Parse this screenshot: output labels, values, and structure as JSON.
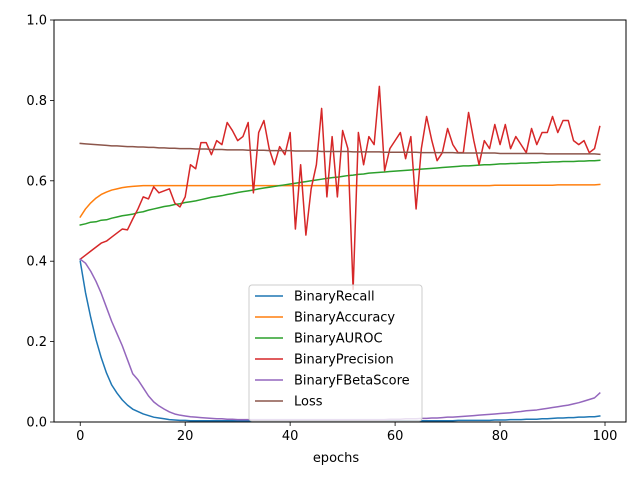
{
  "chart_data": {
    "type": "line",
    "title": "",
    "xlabel": "epochs",
    "ylabel": "",
    "xlim": [
      -5,
      104
    ],
    "ylim": [
      0.0,
      1.0
    ],
    "x_ticks": [
      0,
      20,
      40,
      60,
      80,
      100
    ],
    "y_ticks": [
      0.0,
      0.2,
      0.4,
      0.6,
      0.8,
      1.0
    ],
    "x_tick_labels": [
      "0",
      "20",
      "40",
      "60",
      "80",
      "100"
    ],
    "y_tick_labels": [
      "0.0",
      "0.2",
      "0.4",
      "0.6",
      "0.8",
      "1.0"
    ],
    "grid": false,
    "legend_position": "bottom-center",
    "x": [
      0,
      1,
      2,
      3,
      4,
      5,
      6,
      7,
      8,
      9,
      10,
      11,
      12,
      13,
      14,
      15,
      16,
      17,
      18,
      19,
      20,
      21,
      22,
      23,
      24,
      25,
      26,
      27,
      28,
      29,
      30,
      31,
      32,
      33,
      34,
      35,
      36,
      37,
      38,
      39,
      40,
      41,
      42,
      43,
      44,
      45,
      46,
      47,
      48,
      49,
      50,
      51,
      52,
      53,
      54,
      55,
      56,
      57,
      58,
      59,
      60,
      61,
      62,
      63,
      64,
      65,
      66,
      67,
      68,
      69,
      70,
      71,
      72,
      73,
      74,
      75,
      76,
      77,
      78,
      79,
      80,
      81,
      82,
      83,
      84,
      85,
      86,
      87,
      88,
      89,
      90,
      91,
      92,
      93,
      94,
      95,
      96,
      97,
      98,
      99
    ],
    "series": [
      {
        "name": "BinaryRecall",
        "color": "#1f77b4",
        "values": [
          0.4,
          0.322,
          0.26,
          0.205,
          0.16,
          0.122,
          0.092,
          0.072,
          0.055,
          0.042,
          0.032,
          0.026,
          0.02,
          0.016,
          0.012,
          0.01,
          0.008,
          0.006,
          0.005,
          0.004,
          0.004,
          0.003,
          0.003,
          0.003,
          0.003,
          0.003,
          0.003,
          0.003,
          0.003,
          0.003,
          0.003,
          0.003,
          0.003,
          0.003,
          0.003,
          0.003,
          0.003,
          0.003,
          0.003,
          0.003,
          0.003,
          0.003,
          0.003,
          0.003,
          0.003,
          0.003,
          0.003,
          0.003,
          0.003,
          0.003,
          0.003,
          0.003,
          0.003,
          0.003,
          0.003,
          0.003,
          0.003,
          0.003,
          0.003,
          0.003,
          0.003,
          0.003,
          0.003,
          0.003,
          0.003,
          0.003,
          0.003,
          0.003,
          0.003,
          0.003,
          0.003,
          0.003,
          0.004,
          0.004,
          0.004,
          0.004,
          0.004,
          0.004,
          0.004,
          0.005,
          0.005,
          0.005,
          0.006,
          0.006,
          0.006,
          0.007,
          0.007,
          0.007,
          0.008,
          0.008,
          0.009,
          0.01,
          0.01,
          0.011,
          0.011,
          0.012,
          0.012,
          0.013,
          0.013,
          0.015
        ]
      },
      {
        "name": "BinaryAccuracy",
        "color": "#ff7f0e",
        "values": [
          0.51,
          0.53,
          0.545,
          0.557,
          0.566,
          0.572,
          0.577,
          0.58,
          0.583,
          0.585,
          0.586,
          0.587,
          0.588,
          0.588,
          0.588,
          0.588,
          0.588,
          0.588,
          0.588,
          0.588,
          0.588,
          0.588,
          0.588,
          0.588,
          0.588,
          0.588,
          0.588,
          0.588,
          0.588,
          0.588,
          0.588,
          0.588,
          0.588,
          0.588,
          0.588,
          0.588,
          0.588,
          0.588,
          0.588,
          0.588,
          0.588,
          0.588,
          0.588,
          0.588,
          0.588,
          0.588,
          0.588,
          0.588,
          0.588,
          0.588,
          0.588,
          0.588,
          0.588,
          0.588,
          0.588,
          0.588,
          0.588,
          0.588,
          0.588,
          0.588,
          0.588,
          0.588,
          0.588,
          0.588,
          0.588,
          0.588,
          0.588,
          0.588,
          0.588,
          0.588,
          0.588,
          0.588,
          0.588,
          0.588,
          0.588,
          0.588,
          0.588,
          0.588,
          0.588,
          0.589,
          0.589,
          0.589,
          0.589,
          0.589,
          0.589,
          0.589,
          0.589,
          0.589,
          0.589,
          0.589,
          0.589,
          0.59,
          0.59,
          0.59,
          0.59,
          0.59,
          0.59,
          0.59,
          0.59,
          0.591
        ]
      },
      {
        "name": "BinaryAUROC",
        "color": "#2ca02c",
        "values": [
          0.49,
          0.493,
          0.497,
          0.498,
          0.502,
          0.503,
          0.507,
          0.51,
          0.513,
          0.515,
          0.517,
          0.521,
          0.523,
          0.527,
          0.53,
          0.533,
          0.536,
          0.538,
          0.541,
          0.543,
          0.546,
          0.548,
          0.55,
          0.553,
          0.556,
          0.559,
          0.561,
          0.563,
          0.566,
          0.568,
          0.571,
          0.573,
          0.575,
          0.577,
          0.58,
          0.582,
          0.584,
          0.586,
          0.588,
          0.59,
          0.592,
          0.594,
          0.596,
          0.598,
          0.6,
          0.602,
          0.604,
          0.606,
          0.608,
          0.609,
          0.611,
          0.613,
          0.614,
          0.616,
          0.617,
          0.619,
          0.62,
          0.621,
          0.622,
          0.623,
          0.624,
          0.625,
          0.626,
          0.627,
          0.628,
          0.629,
          0.63,
          0.631,
          0.632,
          0.633,
          0.634,
          0.635,
          0.636,
          0.637,
          0.637,
          0.638,
          0.639,
          0.64,
          0.64,
          0.641,
          0.642,
          0.642,
          0.643,
          0.643,
          0.644,
          0.644,
          0.645,
          0.645,
          0.646,
          0.646,
          0.647,
          0.647,
          0.648,
          0.648,
          0.648,
          0.649,
          0.649,
          0.65,
          0.65,
          0.651
        ]
      },
      {
        "name": "BinaryPrecision",
        "color": "#d62728",
        "values": [
          0.405,
          0.415,
          0.425,
          0.435,
          0.445,
          0.45,
          0.46,
          0.47,
          0.48,
          0.478,
          0.505,
          0.53,
          0.56,
          0.555,
          0.585,
          0.57,
          0.575,
          0.58,
          0.545,
          0.535,
          0.56,
          0.64,
          0.63,
          0.695,
          0.695,
          0.665,
          0.7,
          0.69,
          0.745,
          0.725,
          0.7,
          0.71,
          0.745,
          0.57,
          0.72,
          0.75,
          0.68,
          0.64,
          0.685,
          0.665,
          0.72,
          0.48,
          0.64,
          0.465,
          0.58,
          0.64,
          0.78,
          0.56,
          0.71,
          0.56,
          0.725,
          0.68,
          0.33,
          0.72,
          0.64,
          0.71,
          0.69,
          0.835,
          0.625,
          0.68,
          0.7,
          0.72,
          0.655,
          0.71,
          0.53,
          0.68,
          0.76,
          0.7,
          0.65,
          0.67,
          0.73,
          0.69,
          0.67,
          0.67,
          0.77,
          0.7,
          0.64,
          0.7,
          0.68,
          0.74,
          0.69,
          0.74,
          0.68,
          0.71,
          0.69,
          0.67,
          0.73,
          0.69,
          0.72,
          0.72,
          0.76,
          0.72,
          0.75,
          0.75,
          0.7,
          0.69,
          0.7,
          0.67,
          0.68,
          0.735
        ]
      },
      {
        "name": "BinaryFBetaScore",
        "color": "#9467bd",
        "values": [
          0.405,
          0.395,
          0.375,
          0.35,
          0.32,
          0.285,
          0.25,
          0.22,
          0.19,
          0.155,
          0.12,
          0.105,
          0.085,
          0.065,
          0.05,
          0.04,
          0.032,
          0.025,
          0.02,
          0.017,
          0.015,
          0.013,
          0.012,
          0.011,
          0.01,
          0.009,
          0.008,
          0.008,
          0.007,
          0.007,
          0.006,
          0.006,
          0.006,
          0.006,
          0.006,
          0.006,
          0.006,
          0.006,
          0.006,
          0.006,
          0.006,
          0.006,
          0.006,
          0.006,
          0.006,
          0.006,
          0.006,
          0.006,
          0.006,
          0.006,
          0.006,
          0.006,
          0.006,
          0.006,
          0.006,
          0.006,
          0.006,
          0.006,
          0.006,
          0.007,
          0.007,
          0.007,
          0.008,
          0.008,
          0.008,
          0.009,
          0.009,
          0.01,
          0.01,
          0.011,
          0.012,
          0.012,
          0.013,
          0.014,
          0.015,
          0.016,
          0.017,
          0.018,
          0.019,
          0.02,
          0.021,
          0.022,
          0.023,
          0.025,
          0.026,
          0.028,
          0.029,
          0.03,
          0.032,
          0.034,
          0.036,
          0.038,
          0.04,
          0.042,
          0.045,
          0.048,
          0.052,
          0.056,
          0.06,
          0.072
        ]
      },
      {
        "name": "Loss",
        "color": "#8c564b",
        "values": [
          0.693,
          0.692,
          0.691,
          0.69,
          0.689,
          0.688,
          0.687,
          0.687,
          0.686,
          0.685,
          0.685,
          0.684,
          0.684,
          0.683,
          0.683,
          0.682,
          0.682,
          0.681,
          0.681,
          0.68,
          0.68,
          0.68,
          0.679,
          0.679,
          0.679,
          0.678,
          0.678,
          0.678,
          0.677,
          0.677,
          0.677,
          0.677,
          0.676,
          0.676,
          0.676,
          0.676,
          0.675,
          0.675,
          0.675,
          0.675,
          0.675,
          0.674,
          0.674,
          0.674,
          0.674,
          0.674,
          0.673,
          0.673,
          0.673,
          0.673,
          0.673,
          0.673,
          0.672,
          0.672,
          0.672,
          0.672,
          0.672,
          0.672,
          0.671,
          0.671,
          0.671,
          0.671,
          0.671,
          0.671,
          0.671,
          0.67,
          0.67,
          0.67,
          0.67,
          0.67,
          0.67,
          0.67,
          0.669,
          0.669,
          0.669,
          0.669,
          0.669,
          0.669,
          0.669,
          0.669,
          0.668,
          0.668,
          0.668,
          0.668,
          0.668,
          0.668,
          0.668,
          0.668,
          0.668,
          0.667,
          0.667,
          0.667,
          0.667,
          0.667,
          0.667,
          0.667,
          0.667,
          0.667,
          0.667,
          0.666
        ]
      }
    ]
  }
}
